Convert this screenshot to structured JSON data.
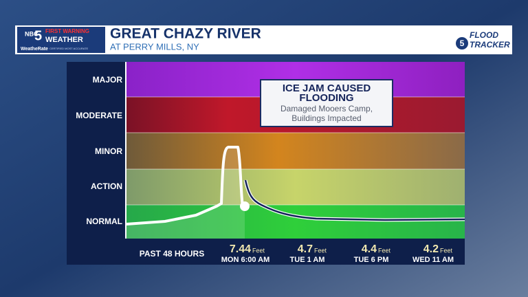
{
  "logo": {
    "network": "NBC",
    "channel": "5",
    "line1": "FIRST WARNING",
    "line2": "WEATHER",
    "brand": "WeatheRate",
    "tagline": "CERTIFIED MOST ACCURATE"
  },
  "header": {
    "title": "GREAT CHAZY RIVER",
    "subtitle": "AT PERRY MILLS, NY"
  },
  "tracker": {
    "channel": "5",
    "line1": "FLOOD",
    "line2": "TRACKER"
  },
  "stages": [
    "MAJOR",
    "MODERATE",
    "MINOR",
    "ACTION",
    "NORMAL"
  ],
  "annotation": {
    "title": [
      "ICE JAM CAUSED",
      "FLOODING"
    ],
    "text": [
      "Damaged Mooers Camp,",
      "Buildings Impacted"
    ]
  },
  "footer": {
    "label": "PAST 48 HOURS",
    "readings": [
      {
        "value": 7.44,
        "unit": "Feet",
        "time": "MON 6:00 AM"
      },
      {
        "value": 4.7,
        "unit": "Feet",
        "time": "TUE 1 AM"
      },
      {
        "value": 4.4,
        "unit": "Feet",
        "time": "TUE 6 PM"
      },
      {
        "value": 4.2,
        "unit": "Feet",
        "time": "WED 11 AM"
      }
    ]
  }
}
